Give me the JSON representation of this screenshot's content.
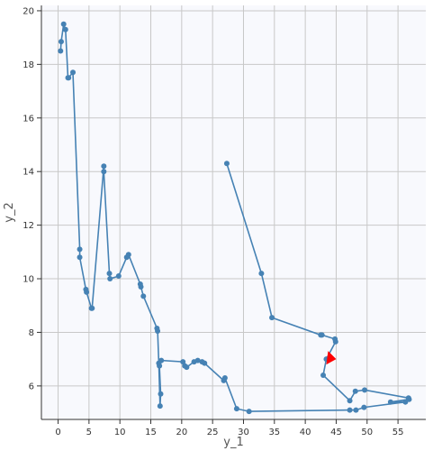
{
  "chart_data": {
    "type": "line",
    "title": "",
    "xlabel": "y_1",
    "ylabel": "y_2",
    "xlim": [
      -2.7,
      59.5
    ],
    "ylim": [
      4.75,
      20.2
    ],
    "xticks": [
      0,
      5,
      10,
      15,
      20,
      25,
      30,
      35,
      40,
      45,
      50,
      55
    ],
    "yticks": [
      6,
      8,
      10,
      12,
      14,
      16,
      18,
      20
    ],
    "grid": true,
    "legend": "none",
    "colors": {
      "line": "#4682b4",
      "marker": "#4682b4",
      "arrow": "#ff0000",
      "plot_bg": "#f8f9fd",
      "grid": "#c8c8c8"
    },
    "series": [
      {
        "points": [
          [
            27.3,
            14.3
          ],
          [
            32.9,
            10.2
          ],
          [
            34.6,
            8.55
          ],
          [
            42.5,
            7.9
          ],
          [
            42.7,
            7.9
          ],
          [
            44.8,
            7.75
          ],
          [
            44.9,
            7.65
          ],
          [
            43.4,
            7.0
          ],
          [
            42.9,
            6.4
          ],
          [
            47.2,
            5.45
          ],
          [
            48.1,
            5.8
          ],
          [
            49.6,
            5.85
          ],
          [
            56.7,
            5.55
          ],
          [
            56.8,
            5.5
          ],
          [
            53.8,
            5.4
          ],
          [
            56.2,
            5.4
          ],
          [
            49.5,
            5.2
          ],
          [
            48.2,
            5.1
          ],
          [
            47.2,
            5.1
          ],
          [
            30.9,
            5.05
          ],
          [
            28.9,
            5.15
          ],
          [
            27.0,
            6.3
          ],
          [
            26.8,
            6.2
          ],
          [
            23.7,
            6.85
          ],
          [
            23.3,
            6.9
          ],
          [
            22.6,
            6.95
          ],
          [
            22.0,
            6.9
          ],
          [
            20.8,
            6.7
          ],
          [
            20.5,
            6.75
          ],
          [
            20.2,
            6.9
          ],
          [
            16.7,
            6.95
          ],
          [
            16.4,
            6.75
          ],
          [
            16.6,
            5.7
          ],
          [
            16.5,
            5.25
          ],
          [
            16.3,
            6.85
          ],
          [
            16.1,
            8.05
          ],
          [
            16.0,
            8.15
          ],
          [
            13.8,
            9.35
          ],
          [
            13.4,
            9.7
          ],
          [
            13.3,
            9.8
          ],
          [
            11.4,
            10.9
          ],
          [
            11.1,
            10.8
          ],
          [
            9.8,
            10.1
          ],
          [
            8.4,
            10.0
          ],
          [
            8.3,
            10.2
          ],
          [
            7.4,
            14.0
          ],
          [
            7.4,
            14.2
          ],
          [
            5.5,
            8.9
          ],
          [
            5.4,
            8.9
          ],
          [
            4.6,
            9.5
          ],
          [
            4.5,
            9.6
          ],
          [
            3.5,
            10.8
          ],
          [
            3.5,
            11.1
          ],
          [
            2.4,
            17.7
          ],
          [
            1.7,
            17.5
          ],
          [
            1.6,
            17.5
          ],
          [
            1.2,
            19.3
          ],
          [
            0.9,
            19.5
          ],
          [
            0.5,
            18.85
          ],
          [
            0.4,
            18.5
          ]
        ]
      }
    ],
    "arrow": {
      "tip": [
        43.4,
        6.8
      ],
      "direction": "down-left"
    }
  }
}
